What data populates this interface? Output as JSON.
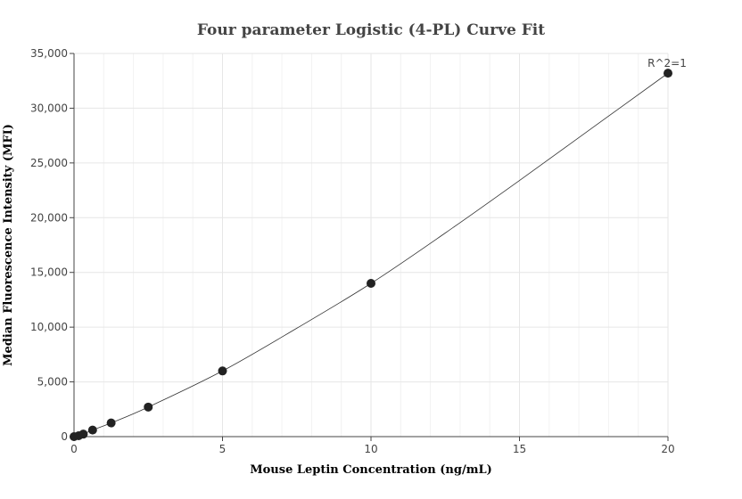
{
  "chart_data": {
    "type": "scatter",
    "title": "Four parameter Logistic (4-PL) Curve Fit",
    "xlabel": "Mouse Leptin Concentration (ng/mL)",
    "ylabel": "Median Fluorescence Intensity (MFI)",
    "xlim": [
      0,
      20
    ],
    "ylim": [
      0,
      35000
    ],
    "x_ticks": [
      0,
      5,
      10,
      15,
      20
    ],
    "x_tick_labels": [
      "0",
      "5",
      "10",
      "15",
      "20"
    ],
    "y_ticks": [
      0,
      5000,
      10000,
      15000,
      20000,
      25000,
      30000,
      35000
    ],
    "y_tick_labels": [
      "0",
      "5,000",
      "10,000",
      "15,000",
      "20,000",
      "25,000",
      "30,000",
      "35,000"
    ],
    "grid": true,
    "legend": "none",
    "annotation": "R^2=1",
    "points": {
      "x": [
        0,
        0.156,
        0.3125,
        0.625,
        1.25,
        2.5,
        5,
        10,
        20
      ],
      "y": [
        0,
        80,
        230,
        600,
        1250,
        2700,
        6000,
        14000,
        33200
      ]
    },
    "curve": {
      "x": [
        0,
        0.156,
        0.3125,
        0.625,
        1.25,
        2.5,
        5,
        7.5,
        10,
        12.5,
        15,
        17.5,
        20
      ],
      "y": [
        0,
        80,
        230,
        600,
        1250,
        2700,
        6000,
        9900,
        14000,
        18600,
        23400,
        28300,
        33200
      ]
    },
    "colors": {
      "points": "#222222",
      "curve": "#333333"
    }
  }
}
